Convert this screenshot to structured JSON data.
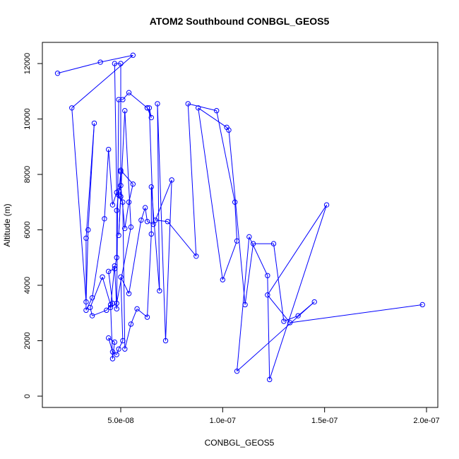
{
  "chart_data": {
    "type": "line",
    "title": "ATOM2 Southbound CONBGL_GEOS5",
    "xlabel": "CONBGL_GEOS5",
    "ylabel": "Altitude (m)",
    "xlim": [
      1.5e-08,
      2e-07
    ],
    "ylim": [
      -200,
      12500
    ],
    "x_ticks": [
      {
        "value": 5e-08,
        "label": "5.0e-08"
      },
      {
        "value": 1e-07,
        "label": "1.0e-07"
      },
      {
        "value": 1.5e-07,
        "label": "1.5e-07"
      },
      {
        "value": 2e-07,
        "label": "2.0e-07"
      }
    ],
    "y_ticks": [
      {
        "value": 0,
        "label": "0"
      },
      {
        "value": 2000,
        "label": "2000"
      },
      {
        "value": 4000,
        "label": "4000"
      },
      {
        "value": 6000,
        "label": "6000"
      },
      {
        "value": 8000,
        "label": "8000"
      },
      {
        "value": 10000,
        "label": "10000"
      },
      {
        "value": 12000,
        "label": "12000"
      }
    ],
    "marker": "open-circle",
    "color": "#0000ff",
    "series": [
      {
        "x": [
          1.9e-08,
          4e-08,
          5.6e-08,
          2.6e-08,
          3.3e-08,
          3.4e-08,
          3.7e-08,
          3.3e-08,
          3.3e-08,
          3.6e-08,
          4.2e-08,
          4.4e-08,
          4.6e-08,
          4.8e-08,
          4.7e-08,
          5e-08,
          5e-08,
          4.9e-08,
          5.2e-08,
          5.5e-08,
          4.8e-08,
          4.5e-08,
          4.7e-08,
          4.8e-08,
          4.9e-08,
          5.1e-08,
          5.4e-08,
          6.3e-08,
          6.3e-08,
          6.5e-08,
          6.4e-08,
          6.6e-08,
          6.3e-08,
          6.2e-08,
          6e-08,
          5.4e-08,
          5e-08,
          5.1e-08,
          4.9e-08,
          4.8e-08,
          4.6e-08,
          4.4e-08,
          4.7e-08,
          4.6e-08,
          4.5e-08,
          4.1e-08,
          3.5e-08,
          3.6e-08,
          4.3e-08,
          4.6e-08,
          4.4e-08,
          4.7e-08,
          4.8e-08,
          4.8e-08,
          4.9e-08,
          5e-08,
          5.2e-08,
          5.4e-08,
          5.6e-08,
          5e-08,
          5e-08,
          4.9e-08,
          5.1e-08,
          5.2e-08,
          5.5e-08,
          5.8e-08,
          6.3e-08,
          6.5e-08,
          6.5e-08,
          6.9e-08,
          6.8e-08,
          7.2e-08,
          7.5e-08,
          6.7e-08,
          7.3e-08,
          8.7e-08,
          8.3e-08,
          9.7e-08,
          1.06e-07,
          1.07e-07,
          1e-07,
          8.8e-08,
          1.02e-07,
          1.03e-07,
          1.11e-07,
          1.15e-07,
          1.25e-07,
          1.3e-07,
          1.37e-07,
          1.45e-07,
          1.07e-07,
          1.13e-07,
          1.22e-07,
          1.23e-07,
          1.51e-07,
          1.22e-07,
          1.33e-07,
          1.98e-07
        ],
        "y": [
          11650,
          12050,
          12300,
          10400,
          3400,
          6000,
          9850,
          5700,
          3100,
          3550,
          6400,
          8900,
          6900,
          7350,
          12000,
          12000,
          7200,
          5800,
          10300,
          6100,
          3350,
          3200,
          4700,
          3150,
          10700,
          10700,
          10950,
          10400,
          10400,
          10050,
          10400,
          6200,
          6300,
          6800,
          6350,
          3700,
          4300,
          2000,
          1700,
          1500,
          1600,
          2100,
          1950,
          1350,
          3300,
          4300,
          3200,
          2900,
          3100,
          3350,
          4500,
          4600,
          5000,
          6700,
          7400,
          7600,
          6050,
          7000,
          7650,
          8150,
          8100,
          7250,
          7000,
          1700,
          2600,
          3150,
          2850,
          5850,
          7550,
          3800,
          10550,
          2000,
          7800,
          6350,
          6300,
          5050,
          10550,
          10300,
          7000,
          5600,
          4200,
          10400,
          9700,
          9600,
          3300,
          5500,
          5500,
          2700,
          2900,
          3400,
          900,
          5750,
          4350,
          600,
          6900,
          3650,
          2650,
          3300
        ]
      }
    ]
  }
}
